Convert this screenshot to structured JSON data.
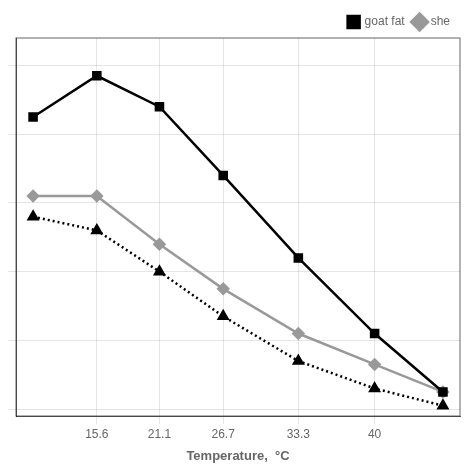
{
  "chart_data": {
    "type": "line",
    "x": [
      10.0,
      15.6,
      21.1,
      26.7,
      33.3,
      40.0,
      46.0
    ],
    "series": [
      {
        "name": "goat fat",
        "color": "#000000",
        "marker": "square",
        "line_style": "solid",
        "values": [
          85,
          97,
          88,
          68,
          44,
          22,
          5
        ]
      },
      {
        "name": "she",
        "color": "#999999",
        "marker": "diamond",
        "line_style": "solid",
        "values": [
          62,
          62,
          48,
          35,
          22,
          13,
          5
        ]
      },
      {
        "color": "#000000",
        "marker": "triangle",
        "line_style": "dotted",
        "values": [
          56,
          52,
          40,
          27,
          14,
          6,
          1
        ]
      }
    ],
    "xlabel": "Temperature,  °C",
    "xlim": [
      8.5,
      47.5
    ],
    "ylim": [
      -2,
      108
    ],
    "xticks": [
      15.6,
      21.1,
      26.7,
      33.3,
      40
    ],
    "yticks": [
      0,
      20,
      40,
      60,
      80,
      100
    ],
    "grid": true,
    "legend": "upper right",
    "tick_labels": "x"
  }
}
